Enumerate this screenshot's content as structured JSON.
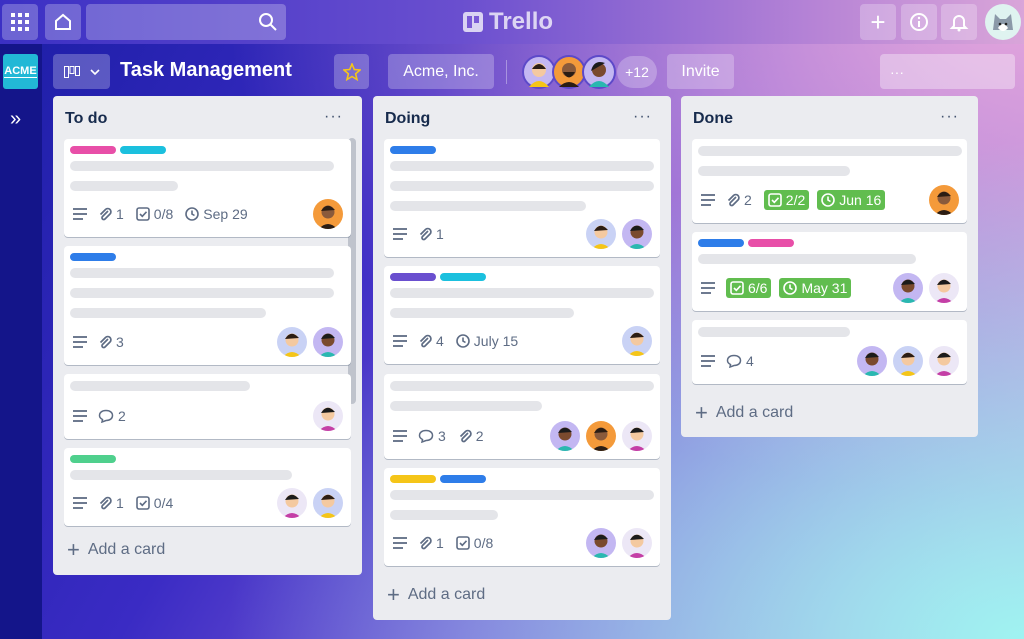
{
  "header": {
    "logo": "Trello"
  },
  "board": {
    "badge": "ACME",
    "title": "Task Management",
    "workspace": "Acme, Inc.",
    "member_overflow": "+12",
    "invite": "Invite"
  },
  "lists": [
    {
      "title": "To do",
      "add": "Add a card",
      "cards": [
        {
          "badges": [
            "1",
            "0/8",
            "Sep 29"
          ]
        },
        {
          "badges": [
            "3"
          ]
        },
        {
          "badges": [
            "2"
          ]
        },
        {
          "badges": [
            "1",
            "0/4"
          ]
        }
      ]
    },
    {
      "title": "Doing",
      "add": "Add a card",
      "cards": [
        {
          "badges": [
            "1"
          ]
        },
        {
          "badges": [
            "4",
            "July 15"
          ]
        },
        {
          "badges": [
            "3",
            "2"
          ]
        },
        {
          "badges": [
            "1",
            "0/8"
          ]
        }
      ]
    },
    {
      "title": "Done",
      "add": "Add a card",
      "cards": [
        {
          "badges": [
            "2",
            "2/2",
            "Jun 16"
          ]
        },
        {
          "badges": [
            "6/6",
            "May 31"
          ]
        },
        {
          "badges": [
            "4"
          ]
        }
      ]
    }
  ]
}
